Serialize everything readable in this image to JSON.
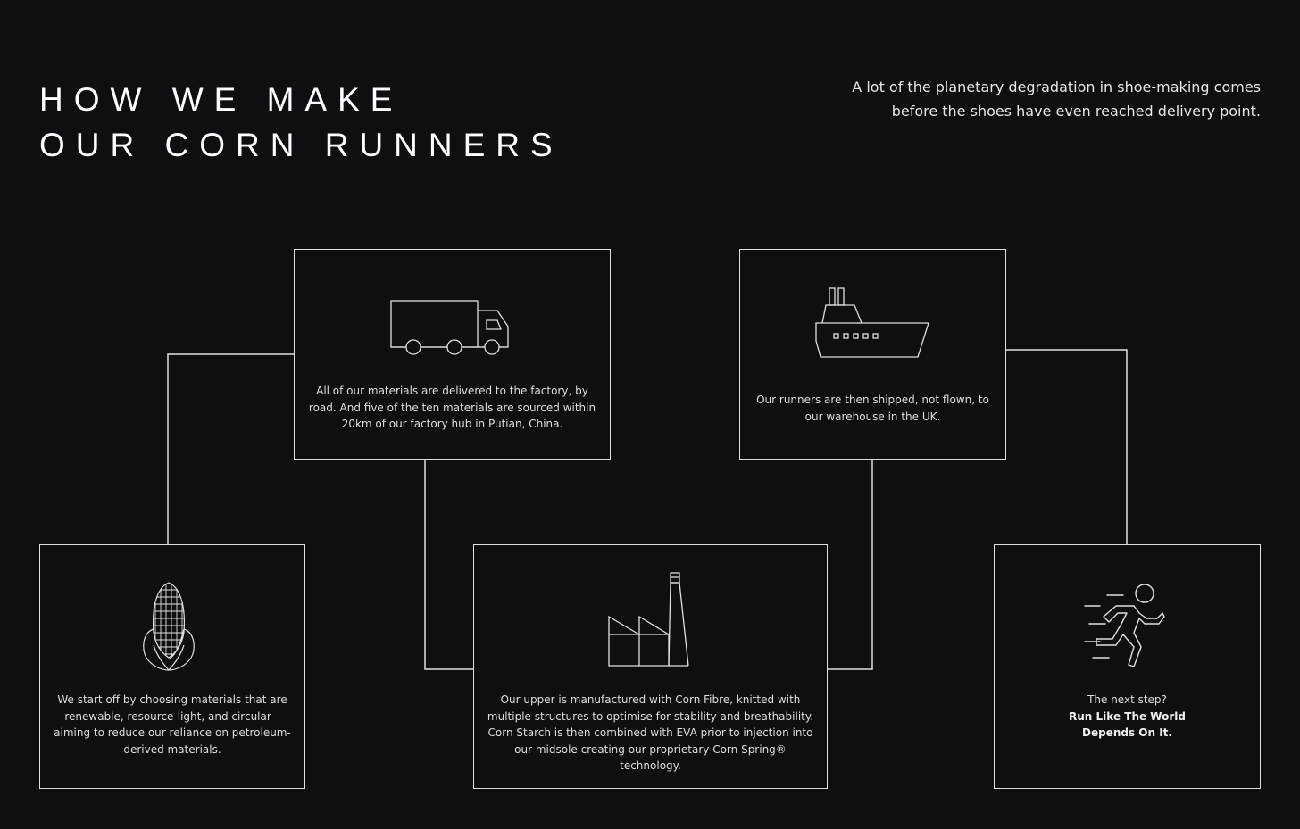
{
  "header": {
    "title_line1": "HOW WE MAKE",
    "title_line2": "OUR CORN RUNNERS",
    "intro_line1": "A lot of the planetary degradation in shoe-making comes",
    "intro_line2": "before the shoes have even reached delivery point."
  },
  "steps": [
    {
      "icon": "corn-icon",
      "text": "We start off by choosing materials that are renewable, resource-light, and circular – aiming to reduce our reliance on petroleum-derived materials."
    },
    {
      "icon": "truck-icon",
      "text": "All of our materials are delivered to the factory, by road. And five of the ten materials are sourced within 20km of our factory hub in Putian, China."
    },
    {
      "icon": "factory-icon",
      "text": "Our upper is manufactured with Corn Fibre, knitted with multiple structures to optimise for stability and breathability. Corn Starch is then combined with EVA prior to injection into our midsole creating our proprietary Corn Spring® technology."
    },
    {
      "icon": "ship-icon",
      "text": "Our runners are then shipped, not flown, to our warehouse in the UK."
    },
    {
      "icon": "runner-icon",
      "text": "The next step?",
      "emphasis_line1": "Run Like The World",
      "emphasis_line2": "Depends On It."
    }
  ],
  "colors": {
    "background": "#0d0f12",
    "line": "#e0e0e0",
    "text": "#e6e6e6"
  }
}
